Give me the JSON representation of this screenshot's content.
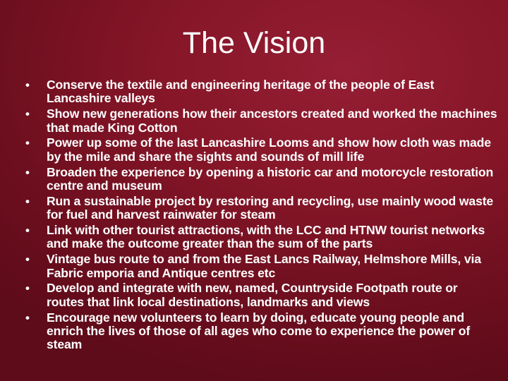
{
  "slide": {
    "title": "The Vision",
    "bullet_glyph": "•",
    "bullets": [
      "Conserve the textile and engineering heritage of the people of East Lancashire valleys",
      "Show new generations how their ancestors created and worked the machines that made King Cotton",
      "Power up some of the last Lancashire Looms and show how cloth was made by the mile and share the sights and sounds of mill life",
      "Broaden the experience by  opening a historic car and motorcycle restoration centre and museum",
      "Run a sustainable project by restoring and recycling, use mainly wood waste for fuel and harvest rainwater for steam",
      "Link with other tourist attractions, with the LCC and HTNW tourist networks and make the outcome greater than the sum of the parts",
      "Vintage bus route to and from the East Lancs Railway, Helmshore Mills, via Fabric emporia and Antique centres etc",
      "Develop and integrate with new, named, Countryside Footpath route or routes that link local destinations, landmarks and views",
      "Encourage new volunteers to learn by doing, educate young people and enrich the lives of those of all ages who come to experience the power of steam"
    ]
  },
  "colors": {
    "background_light": "#951e34",
    "background_mid": "#861628",
    "background_dark": "#5e0b1a",
    "text": "#ffffff"
  }
}
